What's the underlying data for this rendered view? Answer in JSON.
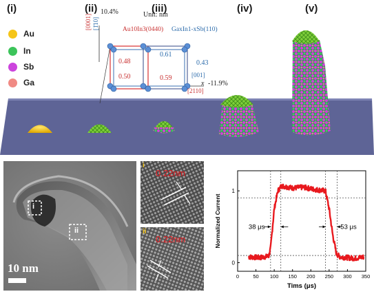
{
  "stages": [
    "(i)",
    "(ii)",
    "(iii)",
    "(iv)",
    "(v)"
  ],
  "legend": [
    {
      "label": "Au",
      "color": "#f5c518"
    },
    {
      "label": "In",
      "color": "#3cc45a"
    },
    {
      "label": "Sb",
      "color": "#cc44dd"
    },
    {
      "label": "Ga",
      "color": "#f08a84"
    }
  ],
  "lattice": {
    "percent_top": "10.4%",
    "unit": "Unit: nm",
    "formula_left": "Au10In3(0440)",
    "formula_right": "GaxIn1-xSb(110)",
    "dir_left_top": "[0001]",
    "dir_left_bottom": "[1̄10]",
    "values": [
      "0.48",
      "0.61",
      "0.43",
      "0.50",
      "0.59"
    ],
    "dir_right_top": "[001]",
    "dir_right_bottom": "[2110]",
    "percent_right": "-11.9%",
    "axis_x": "x"
  },
  "tem": {
    "scale": "10 nm",
    "box_i": "i",
    "box_ii": "ii"
  },
  "hrtem": [
    {
      "tag": "i",
      "spacing": "0.22nm"
    },
    {
      "tag": "ii",
      "spacing": "0.22nm"
    }
  ],
  "chart_data": {
    "type": "line",
    "xlabel": "Tims (μs)",
    "ylabel": "Normalized Current",
    "xlim": [
      0,
      350
    ],
    "ylim": [
      -0.12,
      1.28
    ],
    "xticks": [
      0,
      50,
      100,
      150,
      200,
      250,
      300,
      350
    ],
    "yticks": [
      0,
      1
    ],
    "x": [
      30,
      60,
      85,
      90,
      100,
      110,
      120,
      150,
      180,
      210,
      240,
      250,
      260,
      270,
      280,
      300,
      320,
      345
    ],
    "y": [
      0.08,
      0.07,
      0.09,
      0.2,
      0.75,
      1.0,
      1.07,
      1.04,
      1.05,
      1.02,
      1.0,
      0.75,
      0.38,
      0.12,
      0.08,
      0.07,
      0.06,
      0.08
    ],
    "annotations": [
      "38 μs",
      "53 μs"
    ],
    "rise_markers_x": [
      90,
      118
    ],
    "fall_markers_x": [
      240,
      272
    ],
    "ref_levels": [
      0.9,
      0.1
    ],
    "grid": false,
    "legend": "none",
    "color": "#e8191e"
  }
}
